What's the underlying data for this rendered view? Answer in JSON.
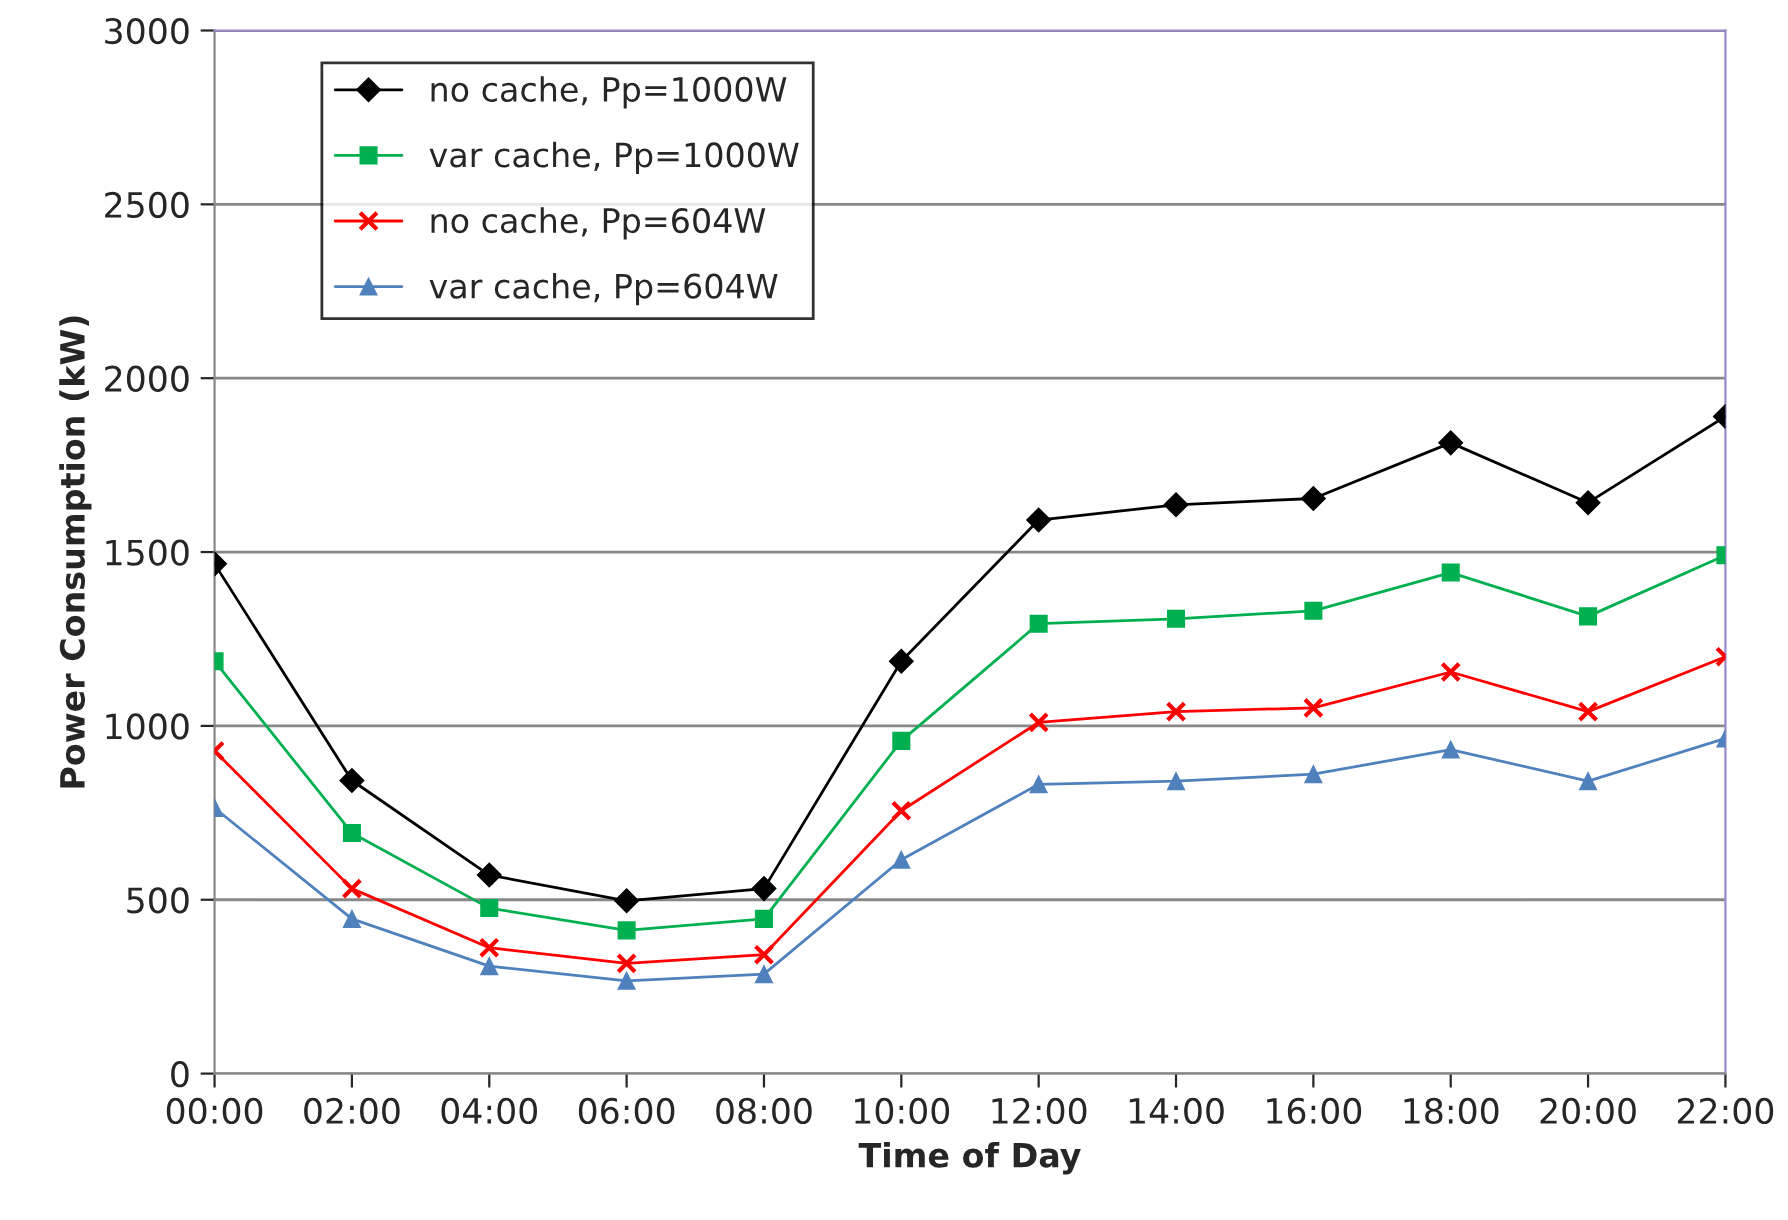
{
  "chart_data": {
    "type": "line",
    "xlabel": "Time of Day",
    "ylabel": "Power Consumption (kW)",
    "x": [
      0,
      2,
      4,
      6,
      8,
      10,
      12,
      14,
      16,
      18,
      20,
      22
    ],
    "xlim": [
      0,
      22
    ],
    "xticks": [
      {
        "value": 0,
        "label": "00:00"
      },
      {
        "value": 2,
        "label": "02:00"
      },
      {
        "value": 4,
        "label": "04:00"
      },
      {
        "value": 6,
        "label": "06:00"
      },
      {
        "value": 8,
        "label": "08:00"
      },
      {
        "value": 10,
        "label": "10:00"
      },
      {
        "value": 12,
        "label": "12:00"
      },
      {
        "value": 14,
        "label": "14:00"
      },
      {
        "value": 16,
        "label": "16:00"
      },
      {
        "value": 18,
        "label": "18:00"
      },
      {
        "value": 20,
        "label": "20:00"
      },
      {
        "value": 22,
        "label": "22:00"
      }
    ],
    "ylim": [
      0,
      3000
    ],
    "yticks": [
      0,
      500,
      1000,
      1500,
      2000,
      2500,
      3000
    ],
    "grid": "y",
    "legend": "top left",
    "series": [
      {
        "name": "no cache, Pp=1000W",
        "color": "#000000",
        "marker": "diamond",
        "values": [
          1466,
          843,
          571,
          497,
          532,
          1186,
          1592,
          1636,
          1654,
          1814,
          1642,
          1890
        ]
      },
      {
        "name": "var cache, Pp=1000W",
        "color": "#00b050",
        "marker": "square",
        "values": [
          1186,
          692,
          476,
          412,
          445,
          957,
          1294,
          1308,
          1331,
          1441,
          1315,
          1491
        ]
      },
      {
        "name": "no cache, Pp=604W",
        "color": "#ff0000",
        "marker": "cross",
        "values": [
          928,
          532,
          362,
          317,
          342,
          756,
          1010,
          1041,
          1052,
          1155,
          1041,
          1199
        ]
      },
      {
        "name": "var cache, Pp=604W",
        "color": "#4f81bd",
        "marker": "triangle",
        "values": [
          764,
          445,
          309,
          267,
          286,
          615,
          832,
          841,
          861,
          932,
          841,
          964
        ]
      }
    ]
  }
}
